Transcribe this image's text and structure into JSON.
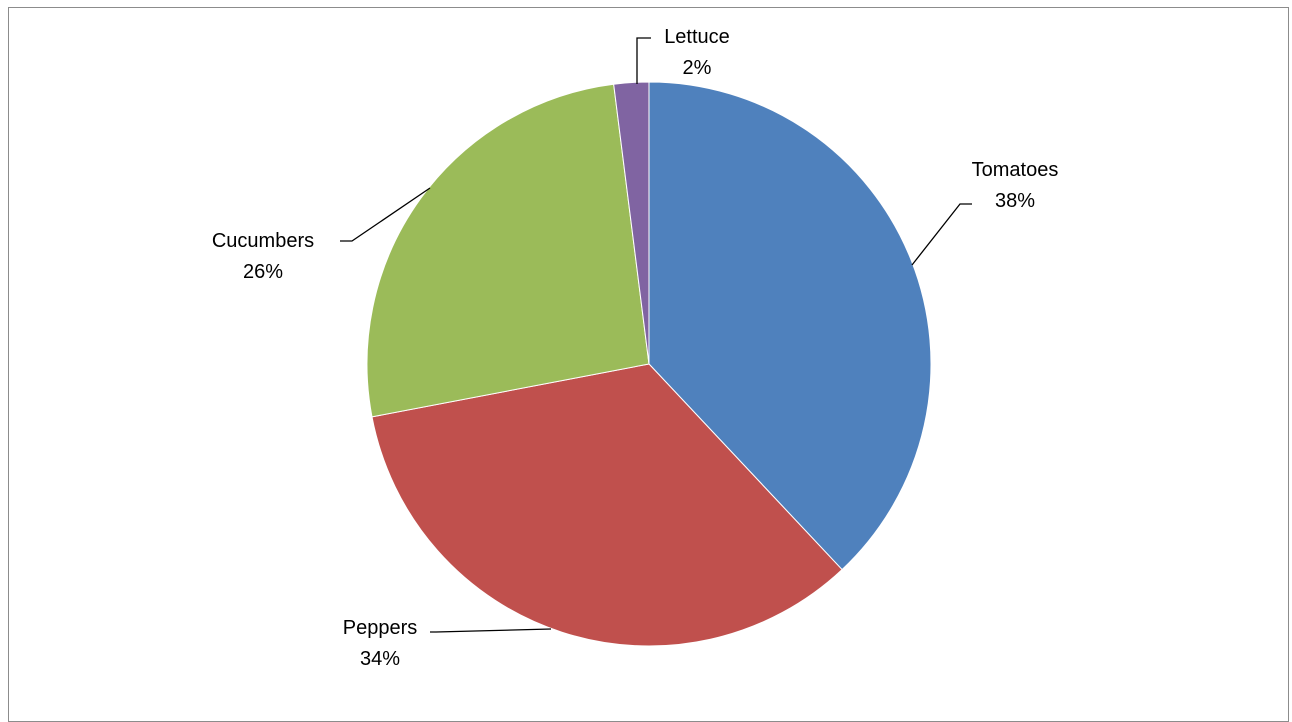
{
  "chart_data": {
    "type": "pie",
    "title": "",
    "slices": [
      {
        "label": "Tomatoes",
        "value": 38,
        "value_label": "38%",
        "color": "#4F81BD"
      },
      {
        "label": "Peppers",
        "value": 34,
        "value_label": "34%",
        "color": "#C0504D"
      },
      {
        "label": "Cucumbers",
        "value": 26,
        "value_label": "26%",
        "color": "#9BBB59"
      },
      {
        "label": "Lettuce",
        "value": 2,
        "value_label": "2%",
        "color": "#8064A2"
      }
    ],
    "legend": "none",
    "data_labels": "outside-with-leader-lines"
  }
}
